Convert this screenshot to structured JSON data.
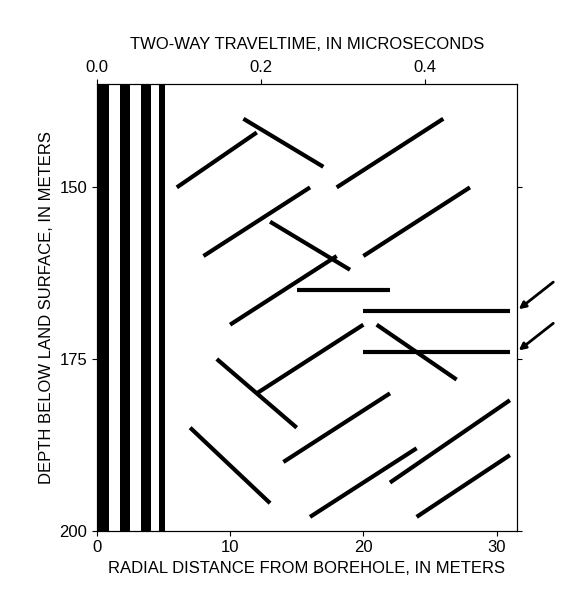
{
  "chart_data": {
    "type": "radar_section",
    "xlabel": "RADIAL DISTANCE FROM BOREHOLE, IN METERS",
    "ylabel": "DEPTH BELOW LAND SURFACE, IN METERS",
    "x2label": "TWO-WAY TRAVELTIME, IN MICROSECONDS",
    "xlim": [
      0,
      31.5
    ],
    "xticks": [
      0,
      10,
      20,
      30
    ],
    "x2lim": [
      0,
      0.512
    ],
    "x2ticks": [
      0.0,
      0.2,
      0.4
    ],
    "ylim": [
      200,
      135
    ],
    "yticks": [
      150,
      175,
      200
    ],
    "color": "#000000",
    "direct_wave_bands": [
      [
        0,
        0.9
      ],
      [
        1.7,
        2.5
      ],
      [
        3.3,
        4.1
      ],
      [
        4.7,
        5.1
      ]
    ],
    "reflectors": [
      [
        [
          6,
          150
        ],
        [
          12,
          142
        ]
      ],
      [
        [
          8,
          160
        ],
        [
          16,
          150
        ]
      ],
      [
        [
          10,
          170
        ],
        [
          18,
          160
        ]
      ],
      [
        [
          12,
          180
        ],
        [
          20,
          170
        ]
      ],
      [
        [
          14,
          190
        ],
        [
          22,
          180
        ]
      ],
      [
        [
          16,
          198
        ],
        [
          24,
          188
        ]
      ],
      [
        [
          18,
          150
        ],
        [
          26,
          140
        ]
      ],
      [
        [
          20,
          160
        ],
        [
          28,
          150
        ]
      ],
      [
        [
          22,
          193
        ],
        [
          31,
          181
        ]
      ],
      [
        [
          24,
          198
        ],
        [
          31,
          189
        ]
      ],
      [
        [
          7,
          185
        ],
        [
          13,
          196
        ]
      ],
      [
        [
          9,
          175
        ],
        [
          15,
          185
        ]
      ],
      [
        [
          11,
          140
        ],
        [
          17,
          147
        ]
      ],
      [
        [
          13,
          155
        ],
        [
          19,
          162
        ]
      ],
      [
        [
          21,
          170
        ],
        [
          27,
          178
        ]
      ],
      [
        [
          20,
          168
        ],
        [
          31,
          168
        ]
      ],
      [
        [
          20,
          174
        ],
        [
          31,
          174
        ]
      ],
      [
        [
          15,
          165
        ],
        [
          22,
          165
        ]
      ]
    ],
    "arrow_depths": [
      168,
      174
    ]
  }
}
